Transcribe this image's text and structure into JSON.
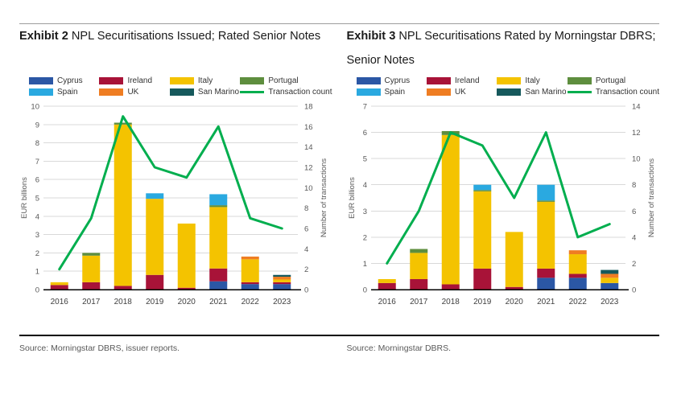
{
  "chart_data": [
    {
      "type": "bar+line",
      "title_bold": "Exhibit 2",
      "title_rest": "NPL Securitisations Issued; Rated Senior Notes",
      "source": "Source: Morningstar DBRS, issuer reports.",
      "categories": [
        "2016",
        "2017",
        "2018",
        "2019",
        "2020",
        "2021",
        "2022",
        "2023"
      ],
      "series": [
        {
          "name": "Cyprus",
          "color": "#2b57a5",
          "values": [
            0,
            0,
            0,
            0,
            0,
            0.45,
            0.3,
            0.3
          ]
        },
        {
          "name": "Ireland",
          "color": "#a81338",
          "values": [
            0.25,
            0.4,
            0.2,
            0.8,
            0.1,
            0.7,
            0.1,
            0.1
          ]
        },
        {
          "name": "Italy",
          "color": "#f4c300",
          "values": [
            0.15,
            1.45,
            8.8,
            4.15,
            3.5,
            3.35,
            1.25,
            0.15
          ]
        },
        {
          "name": "Portugal",
          "color": "#5e8e3e",
          "values": [
            0,
            0.15,
            0.1,
            0,
            0,
            0.1,
            0,
            0
          ]
        },
        {
          "name": "Spain",
          "color": "#2aa9e0",
          "values": [
            0,
            0,
            0,
            0.3,
            0,
            0.6,
            0,
            0
          ]
        },
        {
          "name": "UK",
          "color": "#ef7d22",
          "values": [
            0,
            0,
            0,
            0,
            0,
            0,
            0.15,
            0.15
          ]
        },
        {
          "name": "San Marino",
          "color": "#16595c",
          "values": [
            0,
            0,
            0,
            0,
            0,
            0,
            0,
            0.1
          ]
        }
      ],
      "line": {
        "name": "Transaction count",
        "color": "#00ae4e",
        "values": [
          2,
          7,
          17,
          12,
          11,
          16,
          7,
          6
        ]
      },
      "ylabel_left": "EUR billions",
      "ylabel_right": "Number of transactions",
      "ylim_left": [
        0,
        10
      ],
      "ytick_left": 1,
      "ylim_right": [
        0,
        18
      ],
      "ytick_right": 2,
      "grid": true,
      "legend_position": "top"
    },
    {
      "type": "bar+line",
      "title_bold": "Exhibit 3",
      "title_rest": "NPL Securitisations Rated by Morningstar DBRS; Senior Notes",
      "source": "Source: Morningstar DBRS.",
      "categories": [
        "2016",
        "2017",
        "2018",
        "2019",
        "2020",
        "2021",
        "2022",
        "2023"
      ],
      "series": [
        {
          "name": "Cyprus",
          "color": "#2b57a5",
          "values": [
            0,
            0,
            0,
            0,
            0,
            0.45,
            0.45,
            0.25
          ]
        },
        {
          "name": "Ireland",
          "color": "#a81338",
          "values": [
            0.25,
            0.4,
            0.2,
            0.8,
            0.1,
            0.35,
            0.15,
            0
          ]
        },
        {
          "name": "Italy",
          "color": "#f4c300",
          "values": [
            0.15,
            1.0,
            5.7,
            2.95,
            2.1,
            2.55,
            0.75,
            0.2
          ]
        },
        {
          "name": "Portugal",
          "color": "#5e8e3e",
          "values": [
            0,
            0.15,
            0.15,
            0.05,
            0,
            0.05,
            0,
            0
          ]
        },
        {
          "name": "Spain",
          "color": "#2aa9e0",
          "values": [
            0,
            0,
            0,
            0.2,
            0,
            0.6,
            0,
            0
          ]
        },
        {
          "name": "UK",
          "color": "#ef7d22",
          "values": [
            0,
            0,
            0,
            0,
            0,
            0,
            0.15,
            0.15
          ]
        },
        {
          "name": "San Marino",
          "color": "#16595c",
          "values": [
            0,
            0,
            0,
            0,
            0,
            0,
            0,
            0.15
          ]
        }
      ],
      "line": {
        "name": "Transaction count",
        "color": "#00ae4e",
        "values": [
          2,
          6,
          12,
          11,
          7,
          12,
          4,
          5
        ]
      },
      "ylabel_left": "EUR billions",
      "ylabel_right": "Number of transactions",
      "ylim_left": [
        0,
        7
      ],
      "ytick_left": 1,
      "ylim_right": [
        0,
        14
      ],
      "ytick_right": 2,
      "grid": true,
      "legend_position": "top"
    }
  ]
}
